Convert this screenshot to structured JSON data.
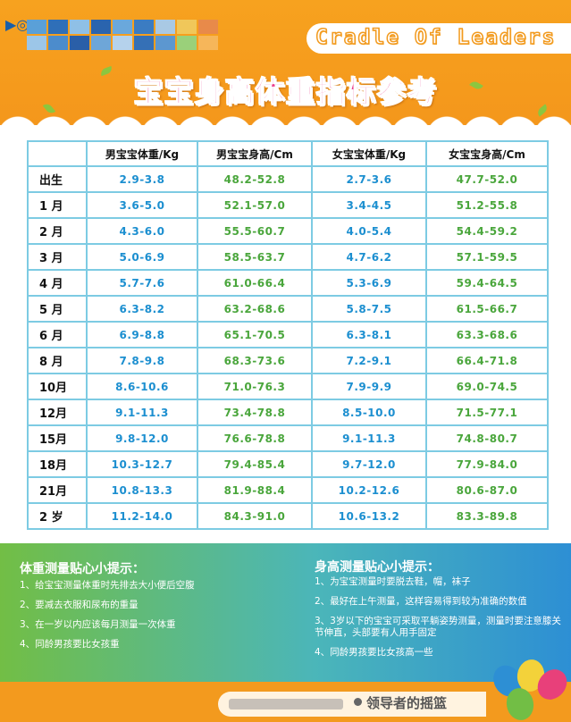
{
  "header": {
    "brand_text": "Cradle Of Leaders",
    "title": "宝宝身高体重指标参考"
  },
  "table": {
    "columns": [
      "",
      "男宝宝体重/Kg",
      "男宝宝身高/Cm",
      "女宝宝体重/Kg",
      "女宝宝身高/Cm"
    ],
    "rows": [
      {
        "age": "出生",
        "boy_weight": "2.9-3.8",
        "boy_height": "48.2-52.8",
        "girl_weight": "2.7-3.6",
        "girl_height": "47.7-52.0"
      },
      {
        "age": "1 月",
        "boy_weight": "3.6-5.0",
        "boy_height": "52.1-57.0",
        "girl_weight": "3.4-4.5",
        "girl_height": "51.2-55.8"
      },
      {
        "age": "2 月",
        "boy_weight": "4.3-6.0",
        "boy_height": "55.5-60.7",
        "girl_weight": "4.0-5.4",
        "girl_height": "54.4-59.2"
      },
      {
        "age": "3 月",
        "boy_weight": "5.0-6.9",
        "boy_height": "58.5-63.7",
        "girl_weight": "4.7-6.2",
        "girl_height": "57.1-59.5"
      },
      {
        "age": "4 月",
        "boy_weight": "5.7-7.6",
        "boy_height": "61.0-66.4",
        "girl_weight": "5.3-6.9",
        "girl_height": "59.4-64.5"
      },
      {
        "age": "5 月",
        "boy_weight": "6.3-8.2",
        "boy_height": "63.2-68.6",
        "girl_weight": "5.8-7.5",
        "girl_height": "61.5-66.7"
      },
      {
        "age": "6 月",
        "boy_weight": "6.9-8.8",
        "boy_height": "65.1-70.5",
        "girl_weight": "6.3-8.1",
        "girl_height": "63.3-68.6"
      },
      {
        "age": "8 月",
        "boy_weight": "7.8-9.8",
        "boy_height": "68.3-73.6",
        "girl_weight": "7.2-9.1",
        "girl_height": "66.4-71.8"
      },
      {
        "age": "10月",
        "boy_weight": "8.6-10.6",
        "boy_height": "71.0-76.3",
        "girl_weight": "7.9-9.9",
        "girl_height": "69.0-74.5"
      },
      {
        "age": "12月",
        "boy_weight": "9.1-11.3",
        "boy_height": "73.4-78.8",
        "girl_weight": "8.5-10.0",
        "girl_height": "71.5-77.1"
      },
      {
        "age": "15月",
        "boy_weight": "9.8-12.0",
        "boy_height": "76.6-78.8",
        "girl_weight": "9.1-11.3",
        "girl_height": "74.8-80.7"
      },
      {
        "age": "18月",
        "boy_weight": "10.3-12.7",
        "boy_height": "79.4-85.4",
        "girl_weight": "9.7-12.0",
        "girl_height": "77.9-84.0"
      },
      {
        "age": "21月",
        "boy_weight": "10.8-13.3",
        "boy_height": "81.9-88.4",
        "girl_weight": "10.2-12.6",
        "girl_height": "80.6-87.0"
      },
      {
        "age": "2 岁",
        "boy_weight": "11.2-14.0",
        "boy_height": "84.3-91.0",
        "girl_weight": "10.6-13.2",
        "girl_height": "83.3-89.8"
      }
    ]
  },
  "tips": {
    "weight": {
      "title": "体重测量贴心小提示：",
      "items": [
        "1、给宝宝测量体重时先排去大小便后空腹",
        "2、要减去衣服和尿布的重量",
        "3、在一岁以内应该每月测量一次体重",
        "4、同龄男孩要比女孩重"
      ]
    },
    "height": {
      "title": "身高测量贴心小提示：",
      "items": [
        "1、为宝宝测量时要脱去鞋，帽，袜子",
        "2、最好在上午测量，这样容易得到较为准确的数值",
        "3、3岁以下的宝宝可采取平躺姿势测量，测量时要注意膝关节伸直，头部要有人用手固定",
        "4、同龄男孩要比女孩高一些"
      ]
    }
  },
  "footer": {
    "slogan": "领导者的摇篮"
  },
  "colors": {
    "background_orange": "#f39a1e",
    "title_pink": "#ea3b8a",
    "table_border": "#7dcbe3",
    "value_blue": "#1c8fd0",
    "value_green": "#4aa63c",
    "tips_gradient_start": "#72be45",
    "tips_gradient_end": "#2d8fd4"
  }
}
